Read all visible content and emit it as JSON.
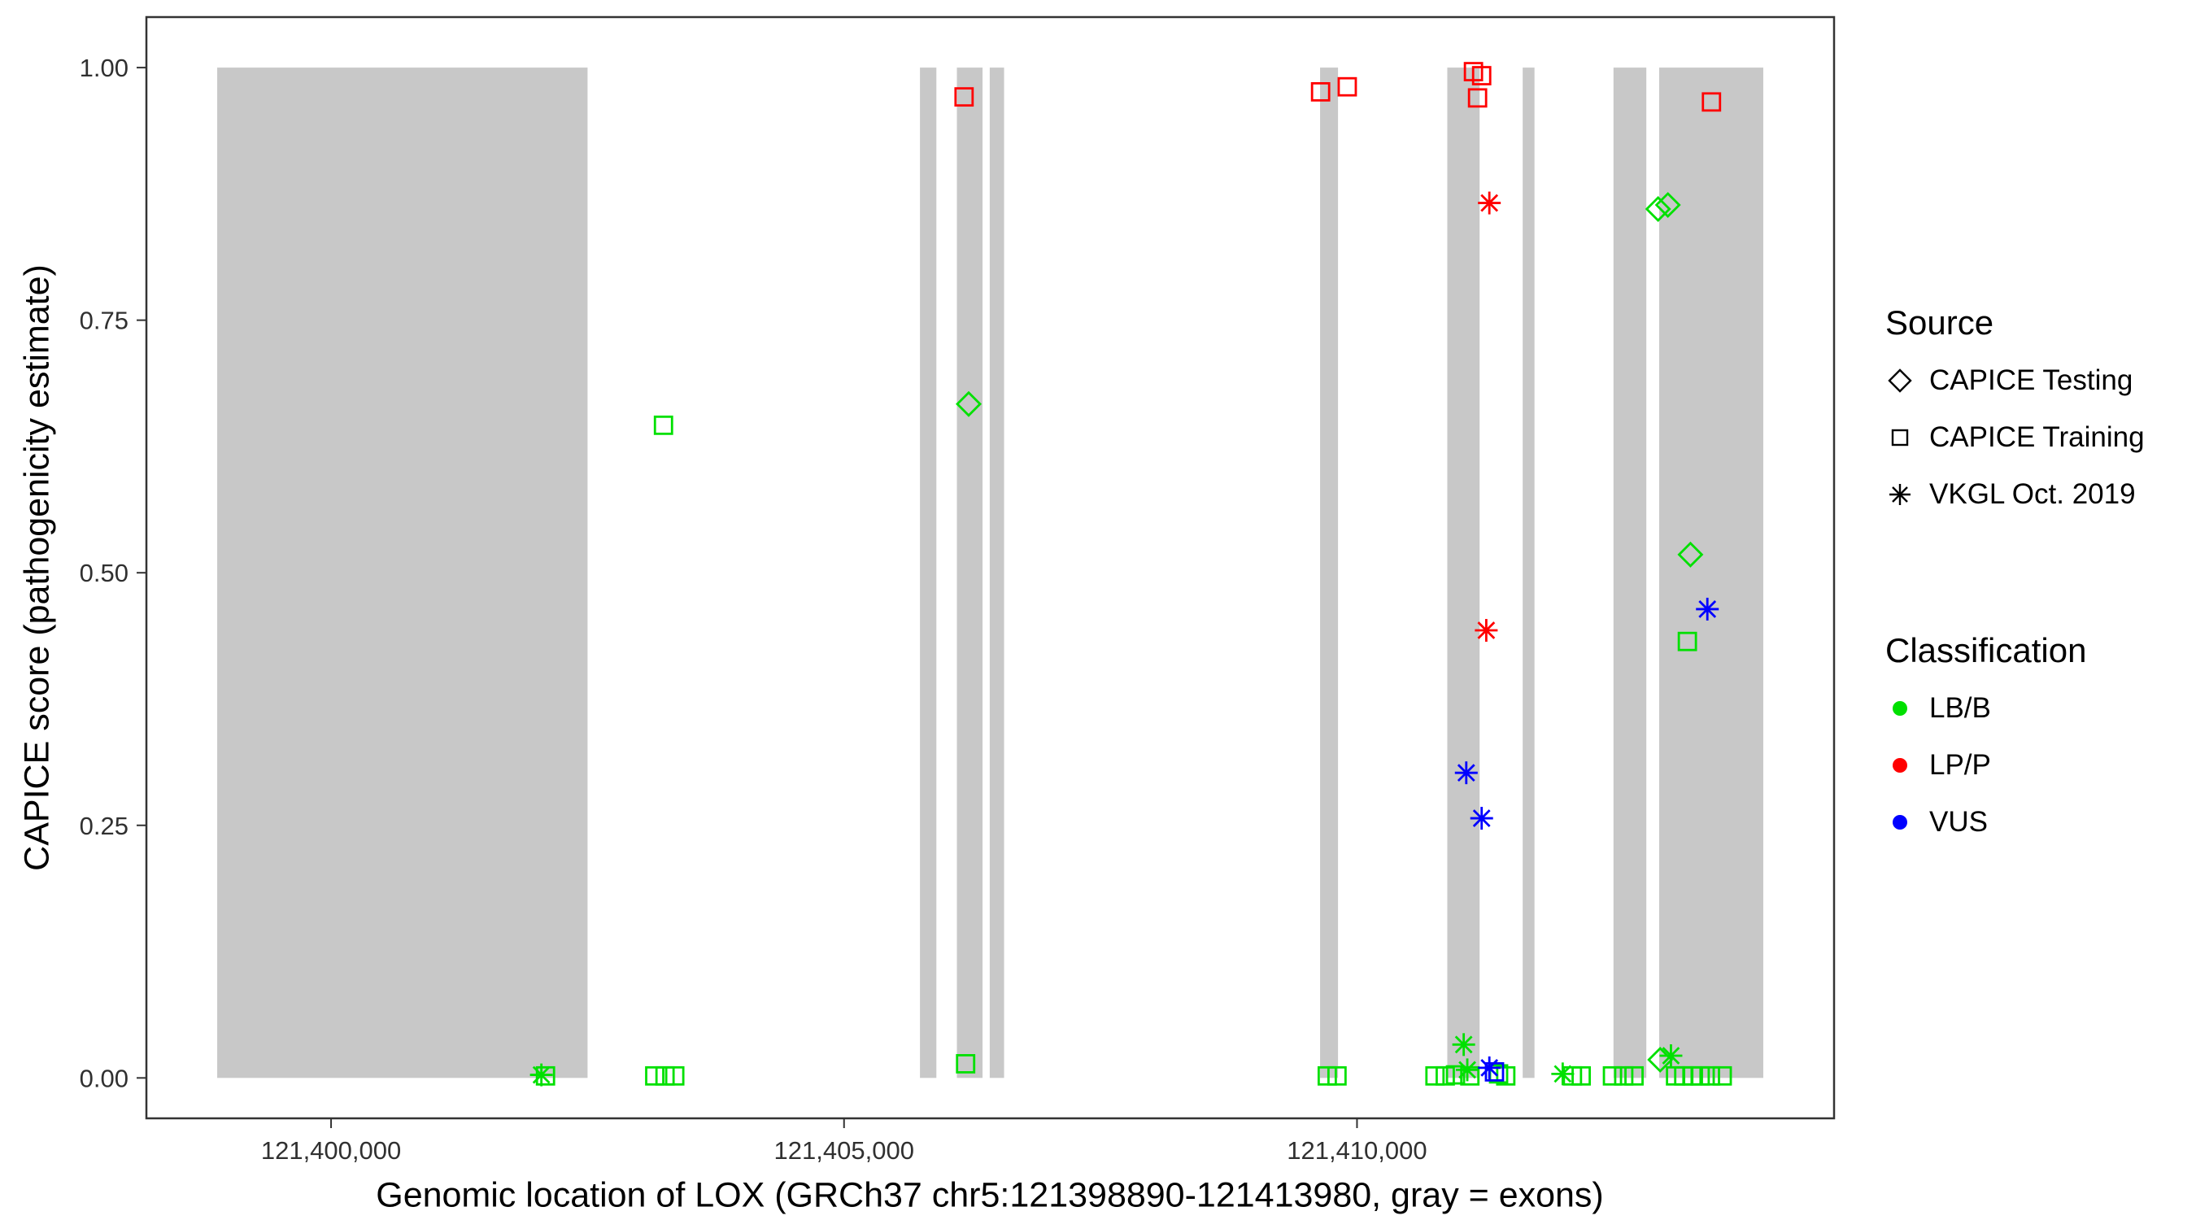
{
  "legend": {
    "source": {
      "title": "Source",
      "items": [
        {
          "label": "CAPICE Testing",
          "shape": "diamond",
          "key": "testing"
        },
        {
          "label": "CAPICE Training",
          "shape": "square",
          "key": "training"
        },
        {
          "label": "VKGL Oct. 2019",
          "shape": "asterisk",
          "key": "vkgl"
        }
      ]
    },
    "classification": {
      "title": "Classification",
      "items": [
        {
          "label": "LB/B",
          "color": "#00e000"
        },
        {
          "label": "LP/P",
          "color": "#ff0000"
        },
        {
          "label": "VUS",
          "color": "#0000ff"
        }
      ]
    }
  },
  "chart_data": {
    "type": "scatter",
    "title": "",
    "xlabel": "Genomic location of LOX (GRCh37 chr5:121398890-121413980, gray = exons)",
    "ylabel": "CAPICE score (pathogenicity estimate)",
    "legend_position": "right",
    "grid": false,
    "x_range": [
      121398200,
      121414650
    ],
    "y_range": [
      -0.04,
      1.05
    ],
    "x_ticks": [
      {
        "value": 121400000,
        "label": "121,400,000"
      },
      {
        "value": 121405000,
        "label": "121,405,000"
      },
      {
        "value": 121410000,
        "label": "121,410,000"
      }
    ],
    "y_ticks": [
      {
        "value": 0.0,
        "label": "0.00"
      },
      {
        "value": 0.25,
        "label": "0.25"
      },
      {
        "value": 0.5,
        "label": "0.50"
      },
      {
        "value": 0.75,
        "label": "0.75"
      },
      {
        "value": 1.0,
        "label": "1.00"
      }
    ],
    "colors": {
      "exon": "#c8c8c8",
      "panel_border": "#333333",
      "tick_label": "#303030",
      "classification": {
        "LB/B": "#00e000",
        "LP/P": "#ff0000",
        "VUS": "#0000ff"
      }
    },
    "exons": [
      [
        121398890,
        121402500
      ],
      [
        121405740,
        121405900
      ],
      [
        121406100,
        121406350
      ],
      [
        121406420,
        121406560
      ],
      [
        121409640,
        121409815
      ],
      [
        121410880,
        121411195
      ],
      [
        121411615,
        121411730
      ],
      [
        121412500,
        121412820
      ],
      [
        121412945,
        121413960
      ]
    ],
    "points": [
      {
        "x": 121406170,
        "y": 0.971,
        "source": "training",
        "class": "LP/P"
      },
      {
        "x": 121409645,
        "y": 0.976,
        "source": "training",
        "class": "LP/P"
      },
      {
        "x": 121409905,
        "y": 0.981,
        "source": "training",
        "class": "LP/P"
      },
      {
        "x": 121411135,
        "y": 0.996,
        "source": "training",
        "class": "LP/P"
      },
      {
        "x": 121411215,
        "y": 0.992,
        "source": "training",
        "class": "LP/P"
      },
      {
        "x": 121411175,
        "y": 0.97,
        "source": "training",
        "class": "LP/P"
      },
      {
        "x": 121413455,
        "y": 0.966,
        "source": "training",
        "class": "LP/P"
      },
      {
        "x": 121411290,
        "y": 0.866,
        "source": "vkgl",
        "class": "LP/P"
      },
      {
        "x": 121411260,
        "y": 0.443,
        "source": "vkgl",
        "class": "LP/P"
      },
      {
        "x": 121403240,
        "y": 0.646,
        "source": "training",
        "class": "LB/B"
      },
      {
        "x": 121406215,
        "y": 0.667,
        "source": "testing",
        "class": "LB/B"
      },
      {
        "x": 121406185,
        "y": 0.014,
        "source": "training",
        "class": "LB/B"
      },
      {
        "x": 121412935,
        "y": 0.86,
        "source": "testing",
        "class": "LB/B"
      },
      {
        "x": 121413030,
        "y": 0.864,
        "source": "testing",
        "class": "LB/B"
      },
      {
        "x": 121413250,
        "y": 0.518,
        "source": "testing",
        "class": "LB/B"
      },
      {
        "x": 121413220,
        "y": 0.432,
        "source": "training",
        "class": "LB/B"
      },
      {
        "x": 121402050,
        "y": 0.003,
        "source": "vkgl",
        "class": "LB/B"
      },
      {
        "x": 121402090,
        "y": 0.002,
        "source": "training",
        "class": "LB/B"
      },
      {
        "x": 121403155,
        "y": 0.002,
        "source": "training",
        "class": "LB/B"
      },
      {
        "x": 121403255,
        "y": 0.002,
        "source": "training",
        "class": "LB/B"
      },
      {
        "x": 121403350,
        "y": 0.002,
        "source": "training",
        "class": "LB/B"
      },
      {
        "x": 121409710,
        "y": 0.002,
        "source": "training",
        "class": "LB/B"
      },
      {
        "x": 121409805,
        "y": 0.002,
        "source": "training",
        "class": "LB/B"
      },
      {
        "x": 121410760,
        "y": 0.002,
        "source": "training",
        "class": "LB/B"
      },
      {
        "x": 121410860,
        "y": 0.002,
        "source": "training",
        "class": "LB/B"
      },
      {
        "x": 121410960,
        "y": 0.003,
        "source": "training",
        "class": "LB/B"
      },
      {
        "x": 121411040,
        "y": 0.033,
        "source": "vkgl",
        "class": "LB/B"
      },
      {
        "x": 121411075,
        "y": 0.008,
        "source": "vkgl",
        "class": "LB/B"
      },
      {
        "x": 121411100,
        "y": 0.002,
        "source": "training",
        "class": "LB/B"
      },
      {
        "x": 121411380,
        "y": 0.004,
        "source": "training",
        "class": "LB/B"
      },
      {
        "x": 121411450,
        "y": 0.002,
        "source": "training",
        "class": "LB/B"
      },
      {
        "x": 121412005,
        "y": 0.004,
        "source": "vkgl",
        "class": "LB/B"
      },
      {
        "x": 121412100,
        "y": 0.002,
        "source": "training",
        "class": "LB/B"
      },
      {
        "x": 121412185,
        "y": 0.002,
        "source": "training",
        "class": "LB/B"
      },
      {
        "x": 121412490,
        "y": 0.002,
        "source": "training",
        "class": "LB/B"
      },
      {
        "x": 121412600,
        "y": 0.002,
        "source": "training",
        "class": "LB/B"
      },
      {
        "x": 121412700,
        "y": 0.002,
        "source": "training",
        "class": "LB/B"
      },
      {
        "x": 121412955,
        "y": 0.018,
        "source": "testing",
        "class": "LB/B"
      },
      {
        "x": 121413060,
        "y": 0.022,
        "source": "vkgl",
        "class": "LB/B"
      },
      {
        "x": 121413105,
        "y": 0.002,
        "source": "training",
        "class": "LB/B"
      },
      {
        "x": 121413185,
        "y": 0.002,
        "source": "training",
        "class": "LB/B"
      },
      {
        "x": 121413265,
        "y": 0.002,
        "source": "training",
        "class": "LB/B"
      },
      {
        "x": 121413345,
        "y": 0.002,
        "source": "training",
        "class": "LB/B"
      },
      {
        "x": 121413445,
        "y": 0.002,
        "source": "training",
        "class": "LB/B"
      },
      {
        "x": 121413560,
        "y": 0.002,
        "source": "training",
        "class": "LB/B"
      },
      {
        "x": 121411065,
        "y": 0.302,
        "source": "vkgl",
        "class": "VUS"
      },
      {
        "x": 121411215,
        "y": 0.257,
        "source": "vkgl",
        "class": "VUS"
      },
      {
        "x": 121413415,
        "y": 0.464,
        "source": "vkgl",
        "class": "VUS"
      },
      {
        "x": 121411290,
        "y": 0.01,
        "source": "vkgl",
        "class": "VUS"
      },
      {
        "x": 121411340,
        "y": 0.006,
        "source": "training",
        "class": "VUS"
      }
    ]
  }
}
